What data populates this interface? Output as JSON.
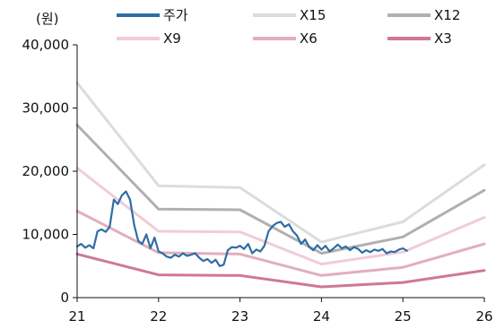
{
  "chart_data": {
    "type": "line",
    "unit_label": "(원)",
    "xlim": [
      21,
      26
    ],
    "ylim": [
      0,
      40000
    ],
    "x_ticks": [
      "21",
      "22",
      "23",
      "24",
      "25",
      "26"
    ],
    "y_ticks": [
      "0",
      "10,000",
      "20,000",
      "30,000",
      "40,000"
    ],
    "grid": false,
    "legend_position": "top",
    "series": [
      {
        "name": "주가",
        "color": "#2e6da4",
        "width": 2.2,
        "x": [
          21.0,
          21.05,
          21.1,
          21.15,
          21.2,
          21.25,
          21.3,
          21.35,
          21.4,
          21.45,
          21.5,
          21.55,
          21.6,
          21.65,
          21.7,
          21.75,
          21.8,
          21.85,
          21.9,
          21.95,
          22.0,
          22.05,
          22.1,
          22.15,
          22.2,
          22.25,
          22.3,
          22.35,
          22.4,
          22.45,
          22.5,
          22.55,
          22.6,
          22.65,
          22.7,
          22.75,
          22.8,
          22.85,
          22.9,
          22.95,
          23.0,
          23.05,
          23.1,
          23.15,
          23.2,
          23.25,
          23.3,
          23.35,
          23.4,
          23.45,
          23.5,
          23.55,
          23.6,
          23.65,
          23.7,
          23.75,
          23.8,
          23.85,
          23.9,
          23.95,
          24.0,
          24.05,
          24.1,
          24.15,
          24.2,
          24.25,
          24.3,
          24.35,
          24.4,
          24.45,
          24.5,
          24.55,
          24.6,
          24.65,
          24.7,
          24.75,
          24.8,
          24.85,
          24.9,
          24.95,
          25.0,
          25.05
        ],
        "y": [
          8100,
          8500,
          7900,
          8300,
          7800,
          10500,
          10800,
          10400,
          11200,
          15500,
          14800,
          16200,
          16800,
          15500,
          11500,
          9000,
          8500,
          10000,
          7800,
          9500,
          7300,
          7000,
          6500,
          6300,
          6800,
          6500,
          7000,
          6600,
          6800,
          7000,
          6300,
          5800,
          6100,
          5500,
          6000,
          5000,
          5200,
          7500,
          8000,
          7900,
          8200,
          7700,
          8500,
          7000,
          7600,
          7300,
          8200,
          10500,
          11300,
          11800,
          12000,
          11200,
          11600,
          10500,
          9800,
          8500,
          9200,
          8000,
          7500,
          8300,
          7600,
          8200,
          7300,
          7800,
          8400,
          7800,
          8100,
          7500,
          8000,
          7700,
          7100,
          7500,
          7200,
          7600,
          7400,
          7700,
          7000,
          7300,
          7200,
          7600,
          7800,
          7400
        ]
      },
      {
        "name": "X15",
        "color": "#dcdcdc",
        "width": 3,
        "x": [
          21,
          22,
          23,
          24,
          25,
          26
        ],
        "y": [
          34000,
          17700,
          17400,
          8800,
          12000,
          21000
        ]
      },
      {
        "name": "X12",
        "color": "#b0b0b0",
        "width": 3,
        "x": [
          21,
          22,
          23,
          24,
          25,
          26
        ],
        "y": [
          27300,
          14000,
          13900,
          7000,
          9600,
          17000
        ]
      },
      {
        "name": "X9",
        "color": "#f0cdd6",
        "width": 3,
        "x": [
          21,
          22,
          23,
          24,
          25,
          26
        ],
        "y": [
          20500,
          10500,
          10400,
          5300,
          7200,
          12700
        ]
      },
      {
        "name": "X6",
        "color": "#e2aebe",
        "width": 3,
        "x": [
          21,
          22,
          23,
          24,
          25,
          26
        ],
        "y": [
          13700,
          7100,
          6900,
          3500,
          4800,
          8500
        ]
      },
      {
        "name": "X3",
        "color": "#cf7893",
        "width": 3,
        "x": [
          21,
          22,
          23,
          24,
          25,
          26
        ],
        "y": [
          6900,
          3600,
          3500,
          1700,
          2400,
          4300
        ]
      }
    ]
  }
}
